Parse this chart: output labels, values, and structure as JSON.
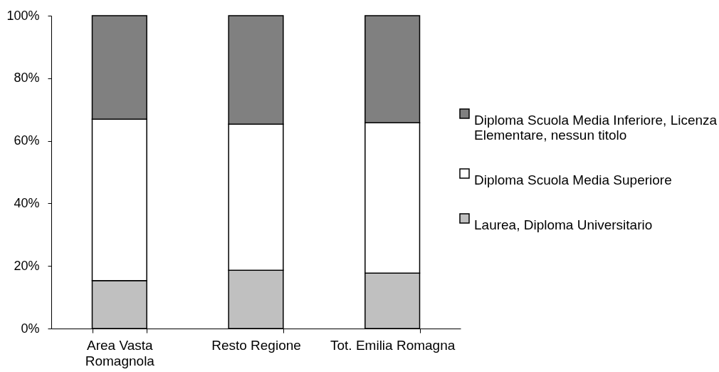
{
  "chart_data": {
    "type": "bar",
    "stacked": true,
    "categories": [
      "Area Vasta Romagnola",
      "Resto Regione",
      "Tot. Emilia Romagna"
    ],
    "series": [
      {
        "name": "Laurea, Diploma Universitario",
        "color": "#c0c0c0",
        "values": [
          15.3,
          18.6,
          17.7
        ]
      },
      {
        "name": "Diploma Scuola Media Superiore",
        "color": "#ffffff",
        "values": [
          51.6,
          46.7,
          48.1
        ]
      },
      {
        "name": "Diploma Scuola Media Inferiore, Licenza Elementare, nessun titolo",
        "color": "#808080",
        "values": [
          33.1,
          34.7,
          34.2
        ]
      }
    ],
    "ylim": [
      0,
      100
    ],
    "yticks": [
      {
        "value": 0,
        "label": "0%"
      },
      {
        "value": 20,
        "label": "20%"
      },
      {
        "value": 40,
        "label": "40%"
      },
      {
        "value": 60,
        "label": "60%"
      },
      {
        "value": 80,
        "label": "80%"
      },
      {
        "value": 100,
        "label": "100%"
      }
    ],
    "legend": "right"
  }
}
